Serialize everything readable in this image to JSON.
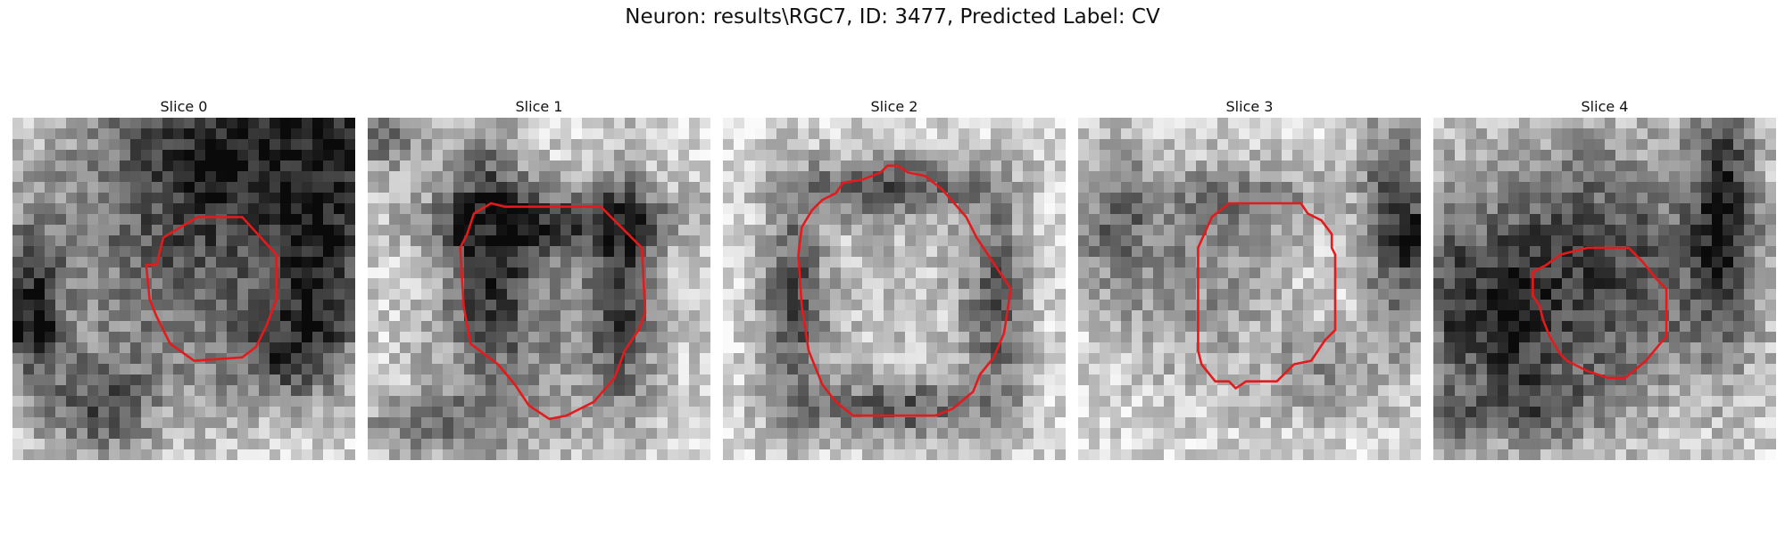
{
  "figure": {
    "title": "Neuron: results\\RGC7, ID: 3477, Predicted Label: CV"
  },
  "colors": {
    "contour": "#e41a1c",
    "background": "#ffffff"
  },
  "slices": [
    {
      "title": "Slice 0",
      "dark_regions": [
        [
          0.85,
          0.05,
          0.55,
          0.28,
          0.95
        ],
        [
          0.55,
          0.35,
          0.6,
          0.6,
          0.85
        ],
        [
          0.9,
          0.45,
          0.15,
          0.3,
          0.9
        ],
        [
          0.05,
          0.55,
          0.12,
          0.3,
          0.9
        ],
        [
          0.25,
          0.85,
          0.2,
          0.2,
          0.7
        ],
        [
          0.8,
          0.7,
          0.2,
          0.15,
          0.6
        ],
        [
          0.05,
          0.6,
          0.06,
          0.06,
          1.0
        ]
      ],
      "contour": [
        [
          0.42,
          0.43
        ],
        [
          0.44,
          0.35
        ],
        [
          0.49,
          0.32
        ],
        [
          0.54,
          0.29
        ],
        [
          0.67,
          0.29
        ],
        [
          0.77,
          0.4
        ],
        [
          0.77,
          0.53
        ],
        [
          0.74,
          0.61
        ],
        [
          0.71,
          0.67
        ],
        [
          0.67,
          0.7
        ],
        [
          0.53,
          0.71
        ],
        [
          0.46,
          0.66
        ],
        [
          0.42,
          0.58
        ],
        [
          0.4,
          0.53
        ],
        [
          0.39,
          0.43
        ]
      ]
    },
    {
      "title": "Slice 1",
      "dark_regions": [
        [
          0.35,
          0.35,
          0.15,
          0.45,
          0.85
        ],
        [
          0.75,
          0.5,
          0.12,
          0.5,
          0.7
        ],
        [
          0.55,
          0.3,
          0.5,
          0.12,
          0.75
        ],
        [
          0.5,
          0.6,
          0.45,
          0.45,
          0.5
        ],
        [
          0.05,
          0.05,
          0.15,
          0.15,
          0.7
        ],
        [
          0.2,
          0.9,
          0.3,
          0.12,
          0.6
        ]
      ],
      "contour": [
        [
          0.27,
          0.38
        ],
        [
          0.29,
          0.34
        ],
        [
          0.31,
          0.28
        ],
        [
          0.36,
          0.25
        ],
        [
          0.4,
          0.26
        ],
        [
          0.49,
          0.26
        ],
        [
          0.68,
          0.26
        ],
        [
          0.73,
          0.31
        ],
        [
          0.8,
          0.38
        ],
        [
          0.81,
          0.57
        ],
        [
          0.79,
          0.62
        ],
        [
          0.75,
          0.68
        ],
        [
          0.72,
          0.76
        ],
        [
          0.66,
          0.83
        ],
        [
          0.62,
          0.85
        ],
        [
          0.58,
          0.87
        ],
        [
          0.53,
          0.88
        ],
        [
          0.47,
          0.84
        ],
        [
          0.43,
          0.78
        ],
        [
          0.38,
          0.72
        ],
        [
          0.3,
          0.66
        ],
        [
          0.28,
          0.55
        ]
      ]
    },
    {
      "title": "Slice 2",
      "dark_regions": [
        [
          0.2,
          0.55,
          0.12,
          0.4,
          0.9
        ],
        [
          0.8,
          0.55,
          0.12,
          0.4,
          0.8
        ],
        [
          0.5,
          0.2,
          0.35,
          0.12,
          0.85
        ],
        [
          0.5,
          0.85,
          0.35,
          0.12,
          0.8
        ],
        [
          0.5,
          0.5,
          0.35,
          0.35,
          0.2
        ]
      ],
      "contour": [
        [
          0.23,
          0.32
        ],
        [
          0.26,
          0.27
        ],
        [
          0.29,
          0.24
        ],
        [
          0.33,
          0.22
        ],
        [
          0.35,
          0.19
        ],
        [
          0.41,
          0.18
        ],
        [
          0.46,
          0.16
        ],
        [
          0.48,
          0.14
        ],
        [
          0.51,
          0.14
        ],
        [
          0.54,
          0.16
        ],
        [
          0.59,
          0.17
        ],
        [
          0.64,
          0.21
        ],
        [
          0.71,
          0.29
        ],
        [
          0.74,
          0.35
        ],
        [
          0.84,
          0.5
        ],
        [
          0.82,
          0.63
        ],
        [
          0.79,
          0.7
        ],
        [
          0.75,
          0.75
        ],
        [
          0.73,
          0.8
        ],
        [
          0.67,
          0.85
        ],
        [
          0.62,
          0.87
        ],
        [
          0.52,
          0.87
        ],
        [
          0.38,
          0.87
        ],
        [
          0.33,
          0.83
        ],
        [
          0.29,
          0.78
        ],
        [
          0.27,
          0.73
        ],
        [
          0.25,
          0.68
        ],
        [
          0.23,
          0.55
        ],
        [
          0.22,
          0.4
        ]
      ]
    },
    {
      "title": "Slice 3",
      "dark_regions": [
        [
          0.92,
          0.3,
          0.12,
          0.5,
          0.9
        ],
        [
          0.98,
          0.35,
          0.06,
          0.1,
          1.0
        ],
        [
          0.1,
          0.3,
          0.15,
          0.3,
          0.6
        ],
        [
          0.35,
          0.5,
          0.3,
          0.4,
          0.45
        ],
        [
          0.5,
          0.25,
          0.35,
          0.15,
          0.5
        ],
        [
          0.7,
          0.75,
          0.2,
          0.2,
          0.45
        ]
      ],
      "contour": [
        [
          0.35,
          0.38
        ],
        [
          0.39,
          0.29
        ],
        [
          0.44,
          0.25
        ],
        [
          0.5,
          0.25
        ],
        [
          0.65,
          0.25
        ],
        [
          0.67,
          0.28
        ],
        [
          0.71,
          0.3
        ],
        [
          0.74,
          0.34
        ],
        [
          0.74,
          0.38
        ],
        [
          0.75,
          0.4
        ],
        [
          0.75,
          0.62
        ],
        [
          0.72,
          0.65
        ],
        [
          0.68,
          0.71
        ],
        [
          0.63,
          0.72
        ],
        [
          0.61,
          0.74
        ],
        [
          0.58,
          0.77
        ],
        [
          0.49,
          0.77
        ],
        [
          0.46,
          0.79
        ],
        [
          0.44,
          0.77
        ],
        [
          0.4,
          0.77
        ],
        [
          0.36,
          0.72
        ],
        [
          0.35,
          0.68
        ]
      ]
    },
    {
      "title": "Slice 4",
      "dark_regions": [
        [
          0.45,
          0.45,
          0.55,
          0.5,
          1.0
        ],
        [
          0.85,
          0.25,
          0.12,
          0.5,
          0.9
        ],
        [
          0.2,
          0.6,
          0.15,
          0.3,
          0.6
        ],
        [
          0.3,
          0.85,
          0.25,
          0.15,
          0.5
        ],
        [
          0.05,
          0.55,
          0.08,
          0.4,
          0.5
        ],
        [
          0.05,
          0.9,
          0.1,
          0.1,
          0.6
        ]
      ],
      "contour": [
        [
          0.29,
          0.45
        ],
        [
          0.29,
          0.52
        ],
        [
          0.31,
          0.55
        ],
        [
          0.32,
          0.59
        ],
        [
          0.34,
          0.64
        ],
        [
          0.37,
          0.69
        ],
        [
          0.39,
          0.71
        ],
        [
          0.45,
          0.74
        ],
        [
          0.51,
          0.76
        ],
        [
          0.56,
          0.76
        ],
        [
          0.62,
          0.71
        ],
        [
          0.67,
          0.65
        ],
        [
          0.68,
          0.64
        ],
        [
          0.68,
          0.5
        ],
        [
          0.65,
          0.47
        ],
        [
          0.61,
          0.42
        ],
        [
          0.57,
          0.38
        ],
        [
          0.45,
          0.38
        ],
        [
          0.37,
          0.4
        ],
        [
          0.33,
          0.43
        ]
      ]
    }
  ]
}
